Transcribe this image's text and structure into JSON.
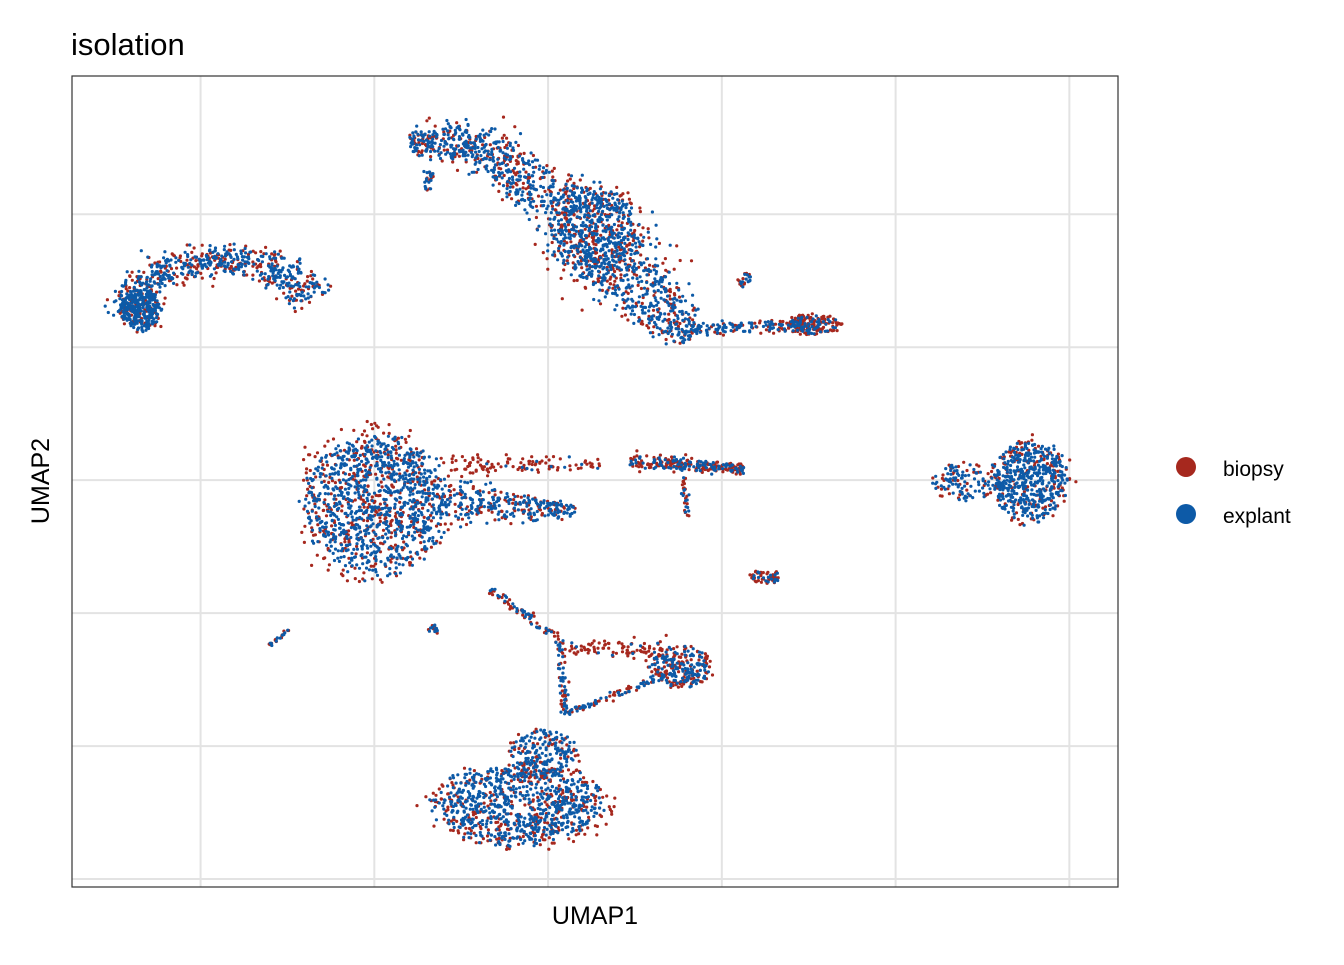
{
  "chart_data": {
    "type": "scatter",
    "title": "isolation",
    "xlabel": "UMAP1",
    "ylabel": "UMAP2",
    "xlim": [
      -13.7,
      16.4
    ],
    "ylim": [
      -15.3,
      15.2
    ],
    "x_gridlines": [
      -10,
      -5,
      0,
      5,
      10,
      15
    ],
    "y_gridlines": [
      -15,
      -10,
      -5,
      0,
      5,
      10
    ],
    "tick_labels_shown": false,
    "grid": true,
    "legend_placement": "right",
    "legend": [
      {
        "label": "biopsy",
        "color": "#a6281e"
      },
      {
        "label": "explant",
        "color": "#0d5aa7"
      }
    ],
    "clusters": [
      {
        "shape": "blob",
        "center": [
          -4.97,
          -0.9
        ],
        "radius": [
          2.07,
          2.63
        ],
        "n": 1300,
        "biopsy_frac": 0.35
      },
      {
        "shape": "path",
        "points": [
          [
            -3.1,
            -0.71
          ],
          [
            0.78,
            -1.17
          ]
        ],
        "width": [
          0.9,
          0.25
        ],
        "n": 300,
        "biopsy_frac": 0.3
      },
      {
        "shape": "path",
        "points": [
          [
            -2.82,
            0.6
          ],
          [
            1.49,
            0.56
          ]
        ],
        "width": [
          0.35,
          0.2
        ],
        "n": 110,
        "biopsy_frac": 0.9
      },
      {
        "shape": "path",
        "points": [
          [
            -1.67,
            -4.1
          ],
          [
            0.34,
            -5.98
          ],
          [
            0.49,
            -8.8
          ]
        ],
        "width": [
          0.15,
          0.12,
          0.1
        ],
        "n": 140,
        "biopsy_frac": 0.5
      },
      {
        "shape": "path",
        "points": [
          [
            0.49,
            -8.8
          ],
          [
            3.79,
            -7.11
          ]
        ],
        "width": [
          0.1,
          0.15
        ],
        "n": 90,
        "biopsy_frac": 0.4
      },
      {
        "shape": "path",
        "points": [
          [
            0.6,
            -6.3
          ],
          [
            3.4,
            -6.4
          ]
        ],
        "width": [
          0.2,
          0.4
        ],
        "n": 90,
        "biopsy_frac": 0.9
      },
      {
        "shape": "blob",
        "center": [
          -0.8,
          -12.18
        ],
        "radius": [
          2.44,
          1.5
        ],
        "n": 1000,
        "biopsy_frac": 0.35
      },
      {
        "shape": "blob",
        "center": [
          -0.09,
          -10.3
        ],
        "radius": [
          1.0,
          0.9
        ],
        "n": 200,
        "biopsy_frac": 0.3
      },
      {
        "shape": "blob",
        "center": [
          3.79,
          -7.03
        ],
        "radius": [
          0.9,
          0.75
        ],
        "n": 250,
        "biopsy_frac": 0.5
      },
      {
        "shape": "blob",
        "center": [
          13.85,
          -0.04
        ],
        "radius": [
          1.1,
          1.5
        ],
        "n": 600,
        "biopsy_frac": 0.25
      },
      {
        "shape": "blob",
        "center": [
          11.98,
          -0.08
        ],
        "radius": [
          0.9,
          0.7
        ],
        "n": 120,
        "biopsy_frac": 0.35
      },
      {
        "shape": "path",
        "points": [
          [
            -3.97,
            12.63
          ],
          [
            -2.24,
            12.82
          ],
          [
            -0.23,
            10.94
          ],
          [
            1.49,
            9.44
          ],
          [
            2.64,
            7.18
          ],
          [
            4.08,
            5.3
          ]
        ],
        "width": [
          0.5,
          0.7,
          0.9,
          1.4,
          1.1,
          0.5
        ],
        "n": 1300,
        "biopsy_frac": 0.35
      },
      {
        "shape": "path",
        "points": [
          [
            -3.4,
            11.6
          ],
          [
            -3.45,
            10.9
          ]
        ],
        "width": [
          0.15,
          0.1
        ],
        "n": 25,
        "biopsy_frac": 0.3
      },
      {
        "shape": "blob",
        "center": [
          1.35,
          9.25
        ],
        "radius": [
          1.3,
          1.8
        ],
        "n": 500,
        "biopsy_frac": 0.35
      },
      {
        "shape": "path",
        "points": [
          [
            4.08,
            5.68
          ],
          [
            7.82,
            5.86
          ]
        ],
        "width": [
          0.25,
          0.2
        ],
        "n": 160,
        "biopsy_frac": 0.4
      },
      {
        "shape": "blob",
        "center": [
          7.67,
          5.86
        ],
        "radius": [
          0.7,
          0.4
        ],
        "n": 160,
        "biopsy_frac": 0.7
      },
      {
        "shape": "blob",
        "center": [
          5.66,
          7.56
        ],
        "radius": [
          0.2,
          0.3
        ],
        "n": 25,
        "biopsy_frac": 0.5
      },
      {
        "shape": "path",
        "points": [
          [
            -12.16,
            6.05
          ],
          [
            -11.44,
            7.74
          ],
          [
            -9.43,
            8.38
          ],
          [
            -7.7,
            7.93
          ],
          [
            -6.7,
            6.8
          ]
        ],
        "width": [
          0.6,
          0.6,
          0.5,
          0.6,
          0.6
        ],
        "n": 700,
        "biopsy_frac": 0.35
      },
      {
        "shape": "blob",
        "center": [
          -11.72,
          6.43
        ],
        "radius": [
          0.6,
          0.8
        ],
        "n": 250,
        "biopsy_frac": 0.2
      },
      {
        "shape": "path",
        "points": [
          [
            2.36,
            0.71
          ],
          [
            5.66,
            0.41
          ]
        ],
        "width": [
          0.25,
          0.2
        ],
        "n": 260,
        "biopsy_frac": 0.6
      },
      {
        "shape": "path",
        "points": [
          [
            3.9,
            0.1
          ],
          [
            4.0,
            -1.5
          ]
        ],
        "width": [
          0.1,
          0.08
        ],
        "n": 30,
        "biopsy_frac": 0.6
      },
      {
        "shape": "blob",
        "center": [
          6.24,
          -3.65
        ],
        "radius": [
          0.5,
          0.25
        ],
        "n": 60,
        "biopsy_frac": 0.7
      },
      {
        "shape": "path",
        "points": [
          [
            -8.0,
            -6.2
          ],
          [
            -7.47,
            -5.6
          ]
        ],
        "width": [
          0.06,
          0.06
        ],
        "n": 25,
        "biopsy_frac": 0.5
      },
      {
        "shape": "blob",
        "center": [
          -3.25,
          -5.6
        ],
        "radius": [
          0.2,
          0.15
        ],
        "n": 20,
        "biopsy_frac": 0.3
      }
    ]
  }
}
